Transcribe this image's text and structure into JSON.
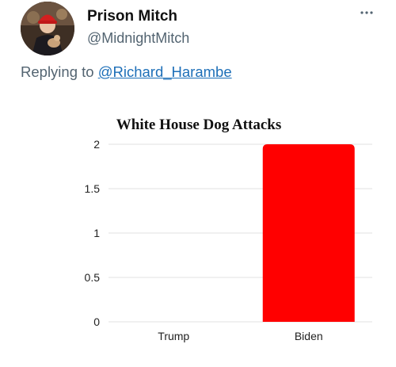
{
  "tweet": {
    "display_name": "Prison Mitch",
    "handle": "@MidnightMitch",
    "reply_prefix": "Replying to ",
    "reply_to": "@Richard_Harambe",
    "more_icon": "more-dots-icon"
  },
  "chart_data": {
    "type": "bar",
    "title": "White House Dog Attacks",
    "xlabel": "",
    "ylabel": "",
    "categories": [
      "Trump",
      "Biden"
    ],
    "values": [
      0,
      2
    ],
    "ylim": [
      0,
      2
    ],
    "yticks": [
      "0",
      "0.5",
      "1",
      "1.5",
      "2"
    ],
    "grid": true,
    "legend": "none",
    "bar_color": "#ff0000"
  }
}
